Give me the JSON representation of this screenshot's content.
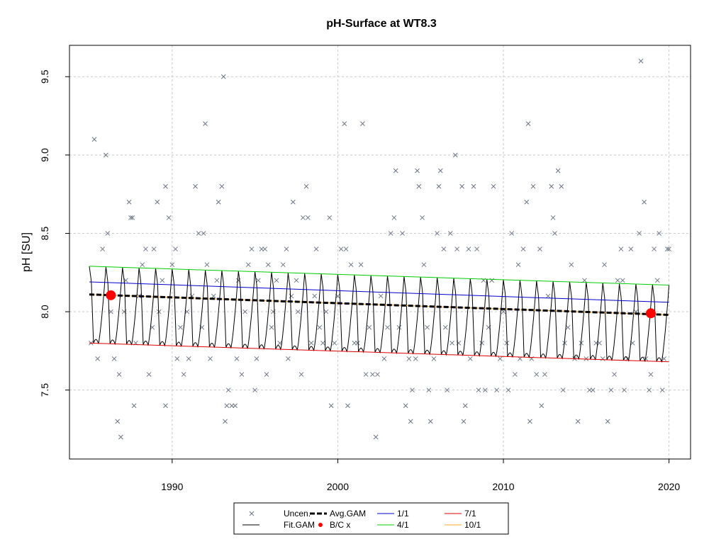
{
  "chart_data": {
    "type": "scatter",
    "title": "pH-Surface at WT8.3",
    "xlabel": "",
    "ylabel": "pH [SU]",
    "xlim": [
      1983.8,
      2021.3
    ],
    "ylim": [
      7.06,
      9.7
    ],
    "x_ticks": [
      "1990",
      "2000",
      "2010",
      "2020"
    ],
    "y_ticks": [
      "7.5",
      "8.0",
      "8.5",
      "9.0",
      "9.5"
    ],
    "grid": true,
    "legend_position": "bottom-center",
    "legend": [
      {
        "label": "Uncen.",
        "symbol": "x",
        "color": "#6b7585"
      },
      {
        "label": "Fit.GAM",
        "symbol": "line",
        "color": "#000000"
      },
      {
        "label": "Avg.GAM",
        "symbol": "dashed-thick",
        "color": "#000000"
      },
      {
        "label": "B/C x",
        "symbol": "point",
        "color": "#ff0000"
      },
      {
        "label": "1/1",
        "symbol": "line",
        "color": "#0000cc"
      },
      {
        "label": "4/1",
        "symbol": "line",
        "color": "#00cc00"
      },
      {
        "label": "7/1",
        "symbol": "line",
        "color": "#dd0000"
      },
      {
        "label": "10/1",
        "symbol": "line",
        "color": "#f5a623"
      }
    ],
    "series": [
      {
        "name": "1/1",
        "color": "#0000cc",
        "x": [
          1985.0,
          2020.0
        ],
        "y": [
          8.19,
          8.06
        ]
      },
      {
        "name": "4/1",
        "color": "#00cc00",
        "x": [
          1985.0,
          2020.0
        ],
        "y": [
          8.29,
          8.17
        ]
      },
      {
        "name": "7/1",
        "color": "#dd0000",
        "x": [
          1985.0,
          2020.0
        ],
        "y": [
          7.8,
          7.68
        ]
      },
      {
        "name": "10/1",
        "color": "#f5a623",
        "x": [
          1985.0,
          2020.0
        ],
        "y": [
          8.11,
          7.98
        ]
      },
      {
        "name": "Avg.GAM",
        "color": "#000000",
        "x": [
          1985.0,
          2020.0
        ],
        "y": [
          8.11,
          7.98
        ]
      }
    ],
    "fit_gam": {
      "start": 1985.0,
      "end": 2020.0,
      "peak_mean_start": 8.29,
      "peak_mean_end": 8.17,
      "trough_mean_start": 7.8,
      "trough_mean_end": 7.68
    },
    "bc_points": [
      {
        "x": 1986.3,
        "y": 8.105
      },
      {
        "x": 2018.9,
        "y": 7.99
      }
    ],
    "uncensored": [
      [
        1985.1,
        7.8
      ],
      [
        1985.3,
        9.1
      ],
      [
        1985.5,
        7.7
      ],
      [
        1985.8,
        8.4
      ],
      [
        1986.0,
        9.0
      ],
      [
        1986.1,
        8.5
      ],
      [
        1986.3,
        8.0
      ],
      [
        1986.5,
        7.7
      ],
      [
        1986.7,
        7.3
      ],
      [
        1986.8,
        7.6
      ],
      [
        1986.9,
        7.2
      ],
      [
        1987.1,
        8.0
      ],
      [
        1987.2,
        8.2
      ],
      [
        1987.4,
        8.7
      ],
      [
        1987.5,
        8.6
      ],
      [
        1987.6,
        8.6
      ],
      [
        1987.7,
        7.4
      ],
      [
        1987.8,
        7.8
      ],
      [
        1988.0,
        8.1
      ],
      [
        1988.2,
        8.3
      ],
      [
        1988.4,
        8.4
      ],
      [
        1988.6,
        7.6
      ],
      [
        1988.8,
        7.9
      ],
      [
        1988.9,
        8.4
      ],
      [
        1989.1,
        8.7
      ],
      [
        1989.2,
        8.0
      ],
      [
        1989.4,
        8.2
      ],
      [
        1989.6,
        8.8
      ],
      [
        1989.6,
        7.4
      ],
      [
        1989.8,
        8.6
      ],
      [
        1990.0,
        8.3
      ],
      [
        1990.2,
        8.4
      ],
      [
        1990.3,
        7.7
      ],
      [
        1990.5,
        7.9
      ],
      [
        1990.7,
        7.6
      ],
      [
        1990.9,
        8.0
      ],
      [
        1991.0,
        7.7
      ],
      [
        1991.2,
        8.1
      ],
      [
        1991.4,
        8.8
      ],
      [
        1991.6,
        8.5
      ],
      [
        1991.8,
        7.9
      ],
      [
        1991.9,
        8.5
      ],
      [
        1992.0,
        9.2
      ],
      [
        1992.1,
        8.3
      ],
      [
        1992.3,
        7.7
      ],
      [
        1992.5,
        8.1
      ],
      [
        1992.7,
        8.2
      ],
      [
        1992.8,
        8.7
      ],
      [
        1993.0,
        8.8
      ],
      [
        1993.1,
        9.5
      ],
      [
        1993.2,
        7.3
      ],
      [
        1993.3,
        7.4
      ],
      [
        1993.4,
        7.5
      ],
      [
        1993.6,
        7.4
      ],
      [
        1993.8,
        7.4
      ],
      [
        1993.9,
        7.7
      ],
      [
        1994.0,
        8.2
      ],
      [
        1994.2,
        7.6
      ],
      [
        1994.4,
        8.0
      ],
      [
        1994.6,
        8.3
      ],
      [
        1994.8,
        8.4
      ],
      [
        1995.0,
        7.5
      ],
      [
        1995.1,
        7.7
      ],
      [
        1995.2,
        8.2
      ],
      [
        1995.4,
        8.4
      ],
      [
        1995.6,
        8.4
      ],
      [
        1995.7,
        7.6
      ],
      [
        1995.8,
        8.3
      ],
      [
        1996.0,
        7.9
      ],
      [
        1996.1,
        8.0
      ],
      [
        1996.3,
        8.2
      ],
      [
        1996.5,
        7.8
      ],
      [
        1996.7,
        8.3
      ],
      [
        1996.9,
        8.4
      ],
      [
        1997.0,
        7.7
      ],
      [
        1997.2,
        8.1
      ],
      [
        1997.3,
        8.7
      ],
      [
        1997.5,
        8.2
      ],
      [
        1997.6,
        8.0
      ],
      [
        1997.8,
        7.6
      ],
      [
        1997.9,
        8.6
      ],
      [
        1998.1,
        8.8
      ],
      [
        1998.2,
        8.6
      ],
      [
        1998.4,
        7.8
      ],
      [
        1998.6,
        8.1
      ],
      [
        1998.7,
        8.4
      ],
      [
        1998.9,
        7.9
      ],
      [
        1999.1,
        7.8
      ],
      [
        1999.3,
        8.0
      ],
      [
        1999.5,
        8.6
      ],
      [
        1999.6,
        7.4
      ],
      [
        1999.8,
        7.8
      ],
      [
        2000.0,
        8.1
      ],
      [
        2000.2,
        8.4
      ],
      [
        2000.4,
        9.2
      ],
      [
        2000.5,
        8.4
      ],
      [
        2000.6,
        7.4
      ],
      [
        2000.8,
        8.3
      ],
      [
        2001.0,
        7.8
      ],
      [
        2001.2,
        7.8
      ],
      [
        2001.4,
        8.3
      ],
      [
        2001.5,
        9.2
      ],
      [
        2001.7,
        7.6
      ],
      [
        2001.9,
        7.9
      ],
      [
        2002.1,
        7.6
      ],
      [
        2002.3,
        7.2
      ],
      [
        2002.4,
        7.6
      ],
      [
        2002.6,
        8.1
      ],
      [
        2002.8,
        7.7
      ],
      [
        2003.0,
        7.9
      ],
      [
        2003.2,
        8.5
      ],
      [
        2003.4,
        8.6
      ],
      [
        2003.5,
        8.9
      ],
      [
        2003.7,
        7.9
      ],
      [
        2003.9,
        8.5
      ],
      [
        2004.1,
        7.4
      ],
      [
        2004.3,
        7.7
      ],
      [
        2004.4,
        7.3
      ],
      [
        2004.5,
        7.5
      ],
      [
        2004.7,
        7.7
      ],
      [
        2004.8,
        8.9
      ],
      [
        2004.9,
        8.8
      ],
      [
        2005.1,
        8.6
      ],
      [
        2005.2,
        8.3
      ],
      [
        2005.4,
        7.9
      ],
      [
        2005.5,
        7.5
      ],
      [
        2005.6,
        7.3
      ],
      [
        2005.8,
        7.7
      ],
      [
        2006.0,
        8.5
      ],
      [
        2006.1,
        8.8
      ],
      [
        2006.2,
        8.9
      ],
      [
        2006.4,
        8.4
      ],
      [
        2006.5,
        7.9
      ],
      [
        2006.6,
        7.5
      ],
      [
        2006.8,
        8.5
      ],
      [
        2006.9,
        7.8
      ],
      [
        2007.1,
        9.0
      ],
      [
        2007.2,
        8.4
      ],
      [
        2007.3,
        7.8
      ],
      [
        2007.5,
        8.8
      ],
      [
        2007.6,
        7.3
      ],
      [
        2007.7,
        7.4
      ],
      [
        2007.9,
        8.4
      ],
      [
        2008.0,
        7.7
      ],
      [
        2008.2,
        8.8
      ],
      [
        2008.4,
        8.4
      ],
      [
        2008.5,
        7.5
      ],
      [
        2008.7,
        7.8
      ],
      [
        2008.8,
        8.2
      ],
      [
        2008.9,
        7.5
      ],
      [
        2009.1,
        7.9
      ],
      [
        2009.3,
        8.2
      ],
      [
        2009.4,
        8.8
      ],
      [
        2009.6,
        7.5
      ],
      [
        2009.8,
        7.7
      ],
      [
        2010.0,
        8.0
      ],
      [
        2010.2,
        7.8
      ],
      [
        2010.3,
        7.5
      ],
      [
        2010.5,
        8.5
      ],
      [
        2010.7,
        7.6
      ],
      [
        2010.9,
        8.3
      ],
      [
        2011.0,
        7.7
      ],
      [
        2011.2,
        8.4
      ],
      [
        2011.4,
        8.7
      ],
      [
        2011.5,
        9.2
      ],
      [
        2011.6,
        7.3
      ],
      [
        2011.7,
        7.7
      ],
      [
        2011.8,
        8.8
      ],
      [
        2012.0,
        7.6
      ],
      [
        2012.2,
        8.4
      ],
      [
        2012.3,
        7.4
      ],
      [
        2012.5,
        7.6
      ],
      [
        2012.7,
        8.1
      ],
      [
        2012.9,
        8.8
      ],
      [
        2013.0,
        8.6
      ],
      [
        2013.1,
        8.5
      ],
      [
        2013.3,
        8.9
      ],
      [
        2013.5,
        8.8
      ],
      [
        2013.6,
        7.5
      ],
      [
        2013.7,
        7.8
      ],
      [
        2013.9,
        7.9
      ],
      [
        2014.1,
        8.3
      ],
      [
        2014.3,
        7.7
      ],
      [
        2014.5,
        7.3
      ],
      [
        2014.7,
        7.8
      ],
      [
        2014.9,
        8.2
      ],
      [
        2015.0,
        7.7
      ],
      [
        2015.2,
        7.5
      ],
      [
        2015.4,
        7.5
      ],
      [
        2015.6,
        7.8
      ],
      [
        2015.8,
        7.8
      ],
      [
        2016.0,
        7.7
      ],
      [
        2016.1,
        8.3
      ],
      [
        2016.3,
        7.3
      ],
      [
        2016.5,
        7.5
      ],
      [
        2016.7,
        7.6
      ],
      [
        2016.9,
        8.2
      ],
      [
        2017.1,
        8.4
      ],
      [
        2017.2,
        8.2
      ],
      [
        2017.3,
        7.5
      ],
      [
        2017.5,
        7.7
      ],
      [
        2017.7,
        8.4
      ],
      [
        2017.8,
        7.8
      ],
      [
        2018.0,
        8.0
      ],
      [
        2018.2,
        8.5
      ],
      [
        2018.3,
        9.6
      ],
      [
        2018.5,
        8.7
      ],
      [
        2018.6,
        7.7
      ],
      [
        2018.8,
        7.5
      ],
      [
        2018.9,
        7.6
      ],
      [
        2019.1,
        8.4
      ],
      [
        2019.3,
        8.2
      ],
      [
        2019.4,
        8.5
      ],
      [
        2019.6,
        7.5
      ],
      [
        2019.7,
        7.7
      ],
      [
        2019.9,
        8.4
      ],
      [
        2020.0,
        8.4
      ]
    ]
  }
}
